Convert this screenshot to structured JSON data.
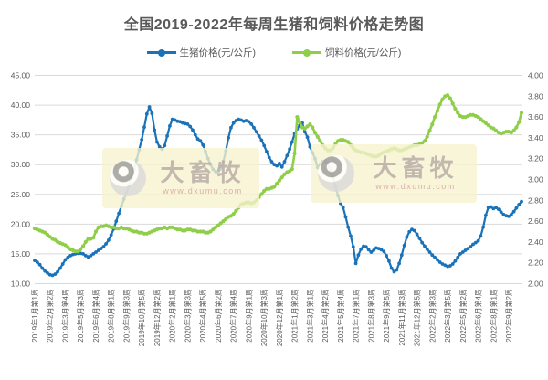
{
  "page": {
    "title": "全国2019-2022年每周生猪和饲料价格走势图"
  },
  "legend": [
    {
      "label": "生猪价格(元/公斤)",
      "color": "#1A72B8"
    },
    {
      "label": "饲料价格(元/公斤)",
      "color": "#8FCE49"
    }
  ],
  "watermark": {
    "brand": "大畜牧",
    "url": "www.dxumu.com"
  },
  "chart_data": {
    "type": "line",
    "title": "全国2019-2022年每周生猪和饲料价格走势图",
    "grid": "horizontal",
    "legend_position": "top",
    "tick_interval": 6,
    "x_tick_labels": [
      "2019年1月第1周",
      "2019年2月第2周",
      "2019年3月第4周",
      "2019年5月第3周",
      "2019年6月第4周",
      "2019年8月第1周",
      "2019年9月第3周",
      "2019年10月第5周",
      "2019年12月第2周",
      "2020年2月第1周",
      "2020年3月第3周",
      "2020年4月第5周",
      "2020年6月第2周",
      "2020年7月第4周",
      "2020年9月第1周",
      "2020年10月第3周",
      "2020年12月第1周",
      "2021年1月第2周",
      "2021年3月第1周",
      "2021年4月第2周",
      "2021年5月第4周",
      "2021年7月第1周",
      "2021年8月第3周",
      "2021年9月第5周",
      "2021年11月第3周",
      "2021年12月第5周",
      "2022年2月第3周",
      "2022年3月第5周",
      "2022年5月第2周",
      "2022年6月第4周",
      "2022年8月第1周",
      "2022年9月第2周"
    ],
    "y_left": {
      "min": 10,
      "max": 45,
      "ticks": [
        "45.00",
        "40.00",
        "35.00",
        "30.00",
        "25.00",
        "20.00",
        "15.00",
        "10.00"
      ]
    },
    "y_right": {
      "min": 2,
      "max": 4,
      "ticks": [
        "4.00",
        "3.80",
        "3.60",
        "3.40",
        "3.20",
        "3.00",
        "2.80",
        "2.60",
        "2.40",
        "2.20",
        "2.00"
      ]
    },
    "series": [
      {
        "name": "生猪价格(元/公斤)",
        "axis": "left",
        "color": "#1A72B8",
        "values": [
          13.9,
          13.6,
          13.2,
          12.6,
          12.1,
          11.8,
          11.5,
          11.4,
          11.6,
          12.0,
          12.6,
          13.3,
          14.0,
          14.4,
          14.7,
          14.9,
          15.0,
          15.1,
          15.1,
          15.0,
          14.7,
          14.5,
          14.7,
          15.0,
          15.3,
          15.6,
          15.9,
          16.2,
          16.7,
          17.3,
          18.2,
          19.2,
          20.5,
          21.8,
          23.0,
          24.2,
          25.3,
          26.5,
          27.8,
          29.2,
          30.8,
          32.5,
          34.2,
          36.3,
          38.5,
          39.7,
          38.6,
          35.8,
          33.8,
          33.0,
          32.6,
          33.2,
          34.8,
          36.5,
          37.6,
          37.5,
          37.3,
          37.2,
          37.0,
          36.9,
          36.8,
          36.4,
          35.8,
          35.0,
          34.3,
          34.0,
          33.3,
          32.2,
          31.0,
          30.0,
          29.2,
          28.8,
          28.7,
          29.3,
          30.5,
          32.3,
          34.5,
          36.2,
          37.0,
          37.4,
          37.6,
          37.5,
          37.3,
          37.4,
          37.2,
          36.8,
          36.2,
          35.5,
          34.8,
          34.1,
          33.2,
          32.2,
          31.2,
          30.5,
          30.0,
          29.8,
          30.2,
          29.6,
          30.5,
          31.5,
          32.6,
          33.8,
          35.2,
          36.0,
          36.6,
          37.0,
          35.5,
          34.6,
          33.0,
          32.0,
          31.0,
          29.5,
          30.0,
          30.5,
          30.6,
          30.2,
          29.0,
          28.0,
          26.3,
          24.8,
          23.5,
          22.8,
          21.2,
          19.5,
          18.0,
          16.2,
          13.4,
          14.8,
          15.8,
          16.3,
          16.2,
          15.7,
          15.3,
          15.6,
          16.0,
          15.9,
          15.7,
          15.4,
          14.7,
          13.8,
          12.6,
          12.0,
          12.3,
          13.4,
          14.8,
          16.4,
          17.8,
          18.7,
          19.1,
          18.9,
          18.3,
          17.6,
          16.9,
          16.3,
          15.8,
          15.3,
          14.8,
          14.4,
          14.0,
          13.6,
          13.3,
          13.1,
          12.9,
          13.0,
          13.3,
          13.8,
          14.4,
          15.0,
          15.3,
          15.6,
          15.9,
          16.2,
          16.6,
          16.9,
          17.2,
          18.0,
          19.5,
          21.5,
          22.8,
          22.9,
          22.6,
          22.8,
          22.5,
          22.0,
          21.6,
          21.4,
          21.3,
          21.6,
          22.1,
          22.7,
          23.3,
          23.8
        ]
      },
      {
        "name": "饲料价格(元/公斤)",
        "axis": "right",
        "color": "#8FCE49",
        "values": [
          2.53,
          2.52,
          2.51,
          2.5,
          2.49,
          2.47,
          2.45,
          2.43,
          2.42,
          2.4,
          2.39,
          2.38,
          2.37,
          2.35,
          2.33,
          2.32,
          2.31,
          2.31,
          2.33,
          2.36,
          2.4,
          2.43,
          2.43,
          2.44,
          2.5,
          2.54,
          2.55,
          2.55,
          2.56,
          2.55,
          2.54,
          2.54,
          2.53,
          2.53,
          2.54,
          2.53,
          2.53,
          2.52,
          2.51,
          2.5,
          2.5,
          2.49,
          2.49,
          2.48,
          2.48,
          2.49,
          2.5,
          2.51,
          2.52,
          2.53,
          2.53,
          2.54,
          2.53,
          2.54,
          2.54,
          2.53,
          2.52,
          2.52,
          2.51,
          2.51,
          2.52,
          2.52,
          2.51,
          2.51,
          2.5,
          2.5,
          2.5,
          2.49,
          2.49,
          2.5,
          2.52,
          2.54,
          2.56,
          2.58,
          2.6,
          2.62,
          2.64,
          2.65,
          2.67,
          2.7,
          2.73,
          2.76,
          2.77,
          2.78,
          2.78,
          2.77,
          2.78,
          2.8,
          2.83,
          2.86,
          2.89,
          2.91,
          2.91,
          2.92,
          2.93,
          2.96,
          2.99,
          3.02,
          3.05,
          3.07,
          3.08,
          3.1,
          3.25,
          3.6,
          3.55,
          3.5,
          3.49,
          3.51,
          3.53,
          3.5,
          3.45,
          3.41,
          3.37,
          3.33,
          3.3,
          3.28,
          3.28,
          3.3,
          3.34,
          3.37,
          3.38,
          3.38,
          3.37,
          3.36,
          3.33,
          3.3,
          3.28,
          3.27,
          3.26,
          3.26,
          3.25,
          3.24,
          3.23,
          3.22,
          3.22,
          3.23,
          3.25,
          3.26,
          3.27,
          3.28,
          3.29,
          3.3,
          3.29,
          3.28,
          3.28,
          3.29,
          3.3,
          3.31,
          3.32,
          3.33,
          3.33,
          3.34,
          3.35,
          3.37,
          3.41,
          3.47,
          3.53,
          3.6,
          3.66,
          3.72,
          3.77,
          3.8,
          3.81,
          3.78,
          3.73,
          3.68,
          3.64,
          3.61,
          3.6,
          3.6,
          3.61,
          3.62,
          3.62,
          3.61,
          3.6,
          3.58,
          3.56,
          3.54,
          3.52,
          3.5,
          3.49,
          3.47,
          3.45,
          3.44,
          3.45,
          3.46,
          3.46,
          3.45,
          3.47,
          3.5,
          3.55,
          3.64
        ]
      }
    ]
  }
}
